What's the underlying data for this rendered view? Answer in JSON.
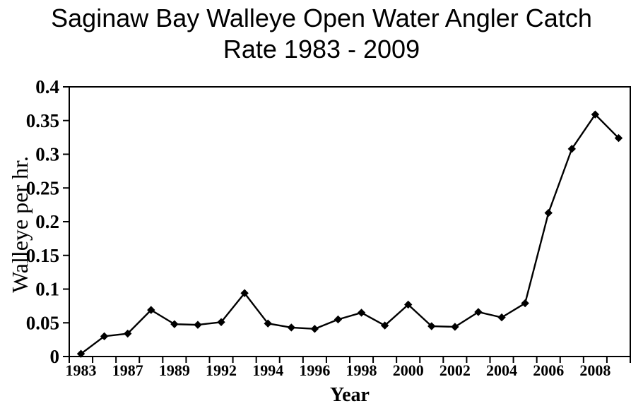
{
  "chart_data": {
    "type": "line",
    "title": "Saginaw Bay Walleye Open Water Angler Catch Rate 1983 - 2009",
    "title_lines": [
      "Saginaw Bay Walleye Open Water Angler Catch",
      "Rate 1983 - 2009"
    ],
    "xlabel": "Year",
    "ylabel": "Walleye per hr.",
    "x": [
      1983,
      1985,
      1987,
      1988,
      1989,
      1991,
      1992,
      1993,
      1994,
      1995,
      1996,
      1997,
      1998,
      1999,
      2000,
      2001,
      2002,
      2003,
      2004,
      2005,
      2006,
      2007,
      2008,
      2009
    ],
    "y": [
      0.004,
      0.03,
      0.034,
      0.069,
      0.048,
      0.047,
      0.051,
      0.094,
      0.049,
      0.043,
      0.041,
      0.055,
      0.065,
      0.046,
      0.077,
      0.045,
      0.044,
      0.066,
      0.058,
      0.079,
      0.213,
      0.308,
      0.359,
      0.324
    ],
    "x_tick_labels": [
      "1983",
      "1987",
      "1989",
      "1992",
      "1994",
      "1996",
      "1998",
      "2000",
      "2002",
      "2004",
      "2006",
      "2008"
    ],
    "x_tick_label_every": 2,
    "y_tick_labels": [
      "0",
      "0.05",
      "0.1",
      "0.15",
      "0.2",
      "0.25",
      "0.3",
      "0.35",
      "0.4"
    ],
    "ylim": [
      0,
      0.4
    ],
    "ytick_step": 0.05,
    "grid": false,
    "legend": false,
    "marker": "diamond",
    "line_color": "#000000",
    "marker_color": "#000000",
    "axis_color": "#000000",
    "background_color": "#ffffff"
  }
}
